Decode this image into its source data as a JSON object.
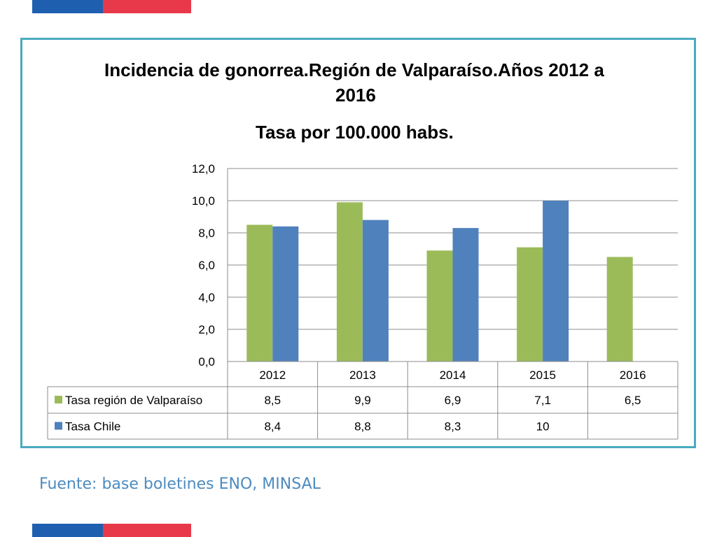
{
  "colors": {
    "flag_blue": "#1f5fb0",
    "flag_red": "#e8394a",
    "frame": "#4aaac0",
    "series_region": "#9bbb59",
    "series_chile": "#4f81bd",
    "source_text": "#4d8bbf"
  },
  "chart_data": {
    "type": "bar",
    "title_line1": "Incidencia de gonorrea.Región de Valparaíso.Años 2012 a",
    "title_line2": "2016",
    "subtitle": "Tasa por 100.000 habs.",
    "categories": [
      "2012",
      "2013",
      "2014",
      "2015",
      "2016"
    ],
    "series": [
      {
        "name": "Tasa región de Valparaíso",
        "values": [
          8.5,
          9.9,
          6.9,
          7.1,
          6.5
        ],
        "labels": [
          "8,5",
          "9,9",
          "6,9",
          "7,1",
          "6,5"
        ]
      },
      {
        "name": "Tasa Chile",
        "values": [
          8.4,
          8.8,
          8.3,
          10,
          null
        ],
        "labels": [
          "8,4",
          "8,8",
          "8,3",
          "10",
          ""
        ]
      }
    ],
    "ylim": [
      0,
      12
    ],
    "yticks": [
      "0,0",
      "2,0",
      "4,0",
      "6,0",
      "8,0",
      "10,0",
      "12,0"
    ],
    "grid": true,
    "legend": "data-table"
  },
  "footer": {
    "source": "Fuente: base boletines ENO, MINSAL"
  }
}
